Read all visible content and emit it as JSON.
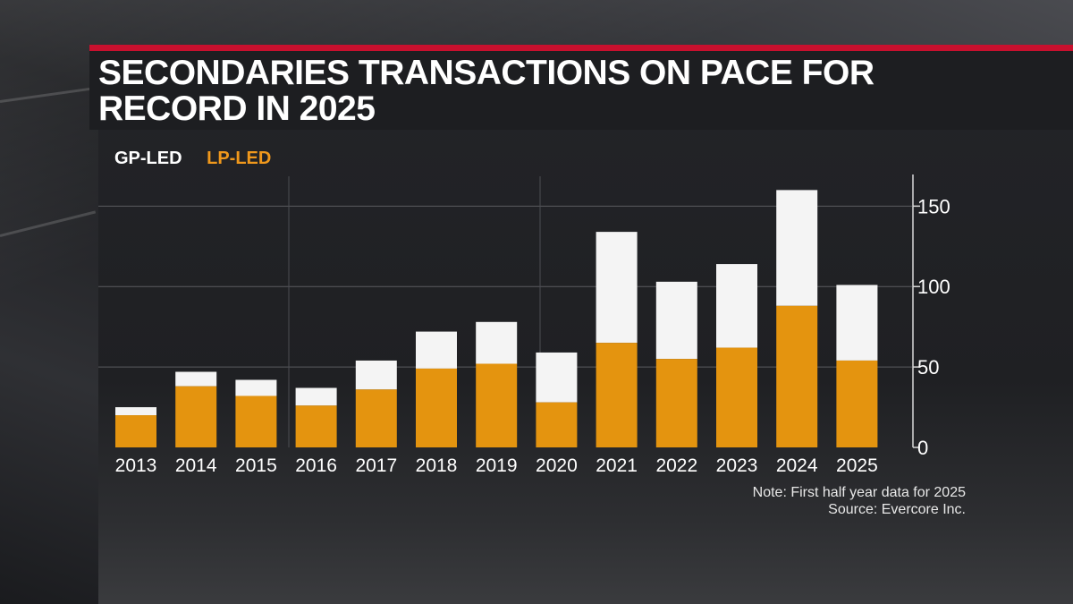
{
  "title": "SECONDARIES TRANSACTIONS ON PACE FOR RECORD IN 2025",
  "colors": {
    "gp": "#f4f4f4",
    "lp": "#e4940f",
    "accent": "#c8102e"
  },
  "legend": {
    "gp": "GP-LED",
    "lp": "LP-LED"
  },
  "chart_data": {
    "type": "bar",
    "stacked": true,
    "title": "SECONDARIES TRANSACTIONS ON PACE FOR RECORD IN 2025",
    "categories": [
      "2013",
      "2014",
      "2015",
      "2016",
      "2017",
      "2018",
      "2019",
      "2020",
      "2021",
      "2022",
      "2023",
      "2024",
      "2025"
    ],
    "series": [
      {
        "name": "LP-LED",
        "values": [
          20,
          38,
          32,
          26,
          36,
          49,
          52,
          28,
          65,
          55,
          62,
          88,
          54
        ]
      },
      {
        "name": "GP-LED",
        "values": [
          5,
          9,
          10,
          11,
          18,
          23,
          26,
          31,
          69,
          48,
          52,
          72,
          47
        ]
      }
    ],
    "y_ticks": [
      0,
      50,
      100,
      150
    ],
    "ylim": [
      0,
      170
    ],
    "y_axis_side": "right",
    "xlabel": "",
    "ylabel": ""
  },
  "note": "Note: First half year data for 2025",
  "source": "Source: Evercore Inc."
}
